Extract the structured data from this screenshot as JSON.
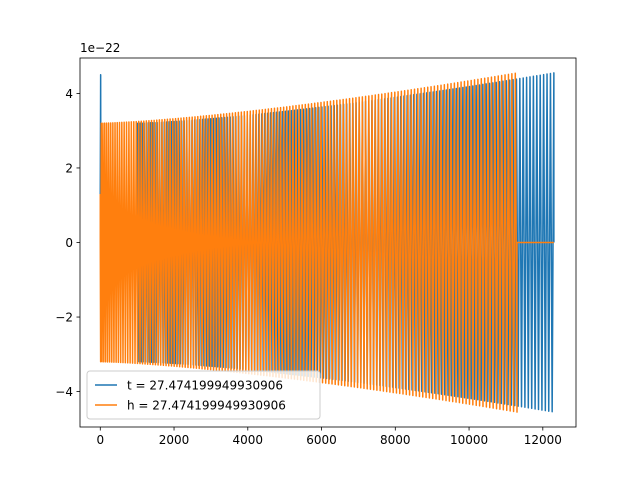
{
  "chart_data": {
    "type": "line",
    "title": "",
    "xlabel": "",
    "ylabel": "",
    "y_offset_label": "1e−22",
    "xlim": [
      -550,
      12900
    ],
    "ylim": [
      -4.95,
      4.95
    ],
    "x_ticks": [
      0,
      2000,
      4000,
      6000,
      8000,
      10000,
      12000
    ],
    "x_tick_labels": [
      "0",
      "2000",
      "4000",
      "6000",
      "8000",
      "10000",
      "12000"
    ],
    "y_ticks": [
      -4,
      -2,
      0,
      2,
      4
    ],
    "y_tick_labels": [
      "−4",
      "−2",
      "0",
      "2",
      "4"
    ],
    "grid": false,
    "legend_position": "lower-left",
    "series": [
      {
        "name": "t = 27.474199949930906",
        "color": "#1f77b4",
        "description": "oscillating chirp signal, amplitude grows from about 3.2 to 4.55 (x1e-22) between x≈1000 and x≈12300; initial spike near x=0 reaching 4.5 and -2.3; flat zero from x≈0 to x≈1000",
        "x_start": 0,
        "x_end": 12300,
        "amplitude_start": 3.2,
        "amplitude_end": 4.55,
        "cycles": 140
      },
      {
        "name": "h = 27.474199949930906",
        "color": "#ff7f0e",
        "description": "oscillating chirp signal, amplitude grows from about 3.2 to 4.55 (x1e-22) between x≈0 and x≈11300; flat zero from x≈11300 to x≈12300",
        "x_start": 0,
        "x_end": 11300,
        "amplitude_start": 3.2,
        "amplitude_end": 4.55,
        "cycles": 140
      }
    ]
  }
}
